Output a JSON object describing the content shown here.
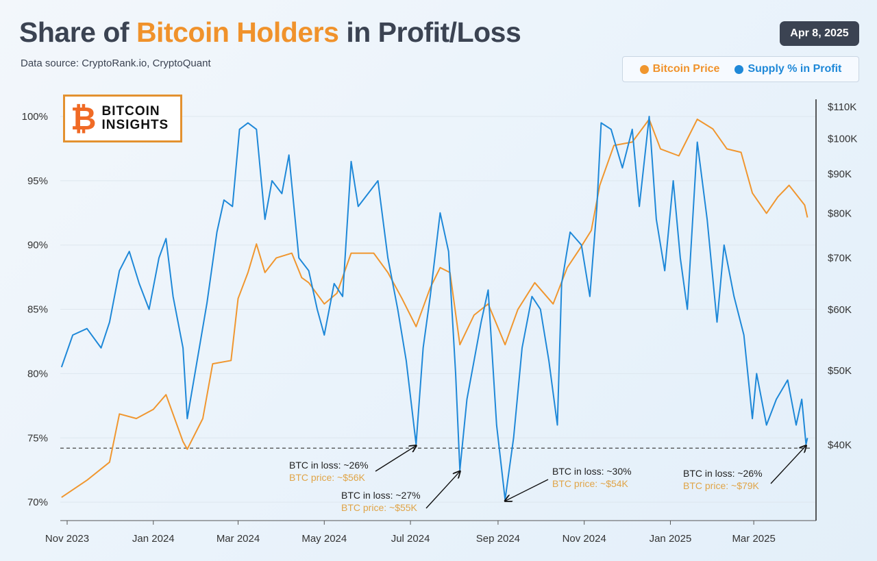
{
  "header": {
    "title_prefix": "Share of ",
    "title_highlight": "Bitcoin Holders",
    "title_suffix": " in Profit/Loss",
    "source": "Data source: CryptoRank.io, CryptoQuant",
    "date_badge": "Apr 8, 2025"
  },
  "logo": {
    "symbol": "₿",
    "line1": "BITCOIN",
    "line2": "INSIGHTS"
  },
  "colors": {
    "title": "#3b4352",
    "accent": "#f0922b",
    "price": "#f0962e",
    "supply": "#1e88d8"
  },
  "chart_data": {
    "type": "line",
    "legend": [
      {
        "name": "Bitcoin Price",
        "color": "#f0962e"
      },
      {
        "name": "Supply % in Profit",
        "color": "#1e88d8"
      }
    ],
    "legend_placement": "top-right",
    "x_ticks": [
      {
        "date": "2023-11-01",
        "label": "Nov 2023"
      },
      {
        "date": "2024-01-01",
        "label": "Jan 2024"
      },
      {
        "date": "2024-03-01",
        "label": "Mar 2024"
      },
      {
        "date": "2024-05-01",
        "label": "May 2024"
      },
      {
        "date": "2024-07-01",
        "label": "Jul 2024"
      },
      {
        "date": "2024-09-01",
        "label": "Sep 2024"
      },
      {
        "date": "2024-11-01",
        "label": "Nov 2024"
      },
      {
        "date": "2025-01-01",
        "label": "Jan 2025"
      },
      {
        "date": "2025-03-01",
        "label": "Mar 2025"
      }
    ],
    "x_range": [
      "2023-10-28",
      "2025-04-08"
    ],
    "y_left": {
      "range": [
        69.5,
        100.5
      ],
      "ticks": [
        {
          "v": 100,
          "label": "100%"
        },
        {
          "v": 95,
          "label": "95%"
        },
        {
          "v": 90,
          "label": "90%"
        },
        {
          "v": 85,
          "label": "85%"
        },
        {
          "v": 80,
          "label": "80%"
        },
        {
          "v": 75,
          "label": "75%"
        },
        {
          "v": 70,
          "label": "70%"
        }
      ],
      "grid": true
    },
    "y_right": {
      "scale": "log",
      "ticks": [
        {
          "v": 110,
          "label": "$110K"
        },
        {
          "v": 100,
          "label": "$100K"
        },
        {
          "v": 90,
          "label": "$90K"
        },
        {
          "v": 80,
          "label": "$80K"
        },
        {
          "v": 70,
          "label": "$70K"
        },
        {
          "v": 60,
          "label": "$60K"
        },
        {
          "v": 50,
          "label": "$50K"
        },
        {
          "v": 40,
          "label": "$40K"
        }
      ]
    },
    "reference_line": {
      "value": 74.2,
      "style": "dashed"
    },
    "series": [
      {
        "name": "Supply % in Profit",
        "axis": "left",
        "unit": "%",
        "points": [
          [
            "2023-10-28",
            80.5
          ],
          [
            "2023-11-05",
            83
          ],
          [
            "2023-11-15",
            83.5
          ],
          [
            "2023-11-25",
            82
          ],
          [
            "2023-12-01",
            84
          ],
          [
            "2023-12-08",
            88
          ],
          [
            "2023-12-15",
            89.5
          ],
          [
            "2023-12-22",
            87
          ],
          [
            "2023-12-29",
            85
          ],
          [
            "2024-01-05",
            89
          ],
          [
            "2024-01-10",
            90.5
          ],
          [
            "2024-01-15",
            86
          ],
          [
            "2024-01-22",
            82
          ],
          [
            "2024-01-25",
            76.5
          ],
          [
            "2024-02-01",
            81
          ],
          [
            "2024-02-08",
            85.5
          ],
          [
            "2024-02-15",
            91
          ],
          [
            "2024-02-20",
            93.5
          ],
          [
            "2024-02-26",
            93
          ],
          [
            "2024-03-02",
            99
          ],
          [
            "2024-03-08",
            99.5
          ],
          [
            "2024-03-14",
            99
          ],
          [
            "2024-03-20",
            92
          ],
          [
            "2024-03-25",
            95
          ],
          [
            "2024-04-01",
            94
          ],
          [
            "2024-04-06",
            97
          ],
          [
            "2024-04-13",
            89
          ],
          [
            "2024-04-20",
            88
          ],
          [
            "2024-04-26",
            85
          ],
          [
            "2024-05-01",
            83
          ],
          [
            "2024-05-08",
            87
          ],
          [
            "2024-05-14",
            86
          ],
          [
            "2024-05-20",
            96.5
          ],
          [
            "2024-05-25",
            93
          ],
          [
            "2024-06-01",
            94
          ],
          [
            "2024-06-08",
            95
          ],
          [
            "2024-06-15",
            89
          ],
          [
            "2024-06-22",
            85
          ],
          [
            "2024-06-28",
            81
          ],
          [
            "2024-07-05",
            74.5
          ],
          [
            "2024-07-10",
            82
          ],
          [
            "2024-07-15",
            86
          ],
          [
            "2024-07-22",
            92.5
          ],
          [
            "2024-07-28",
            89.5
          ],
          [
            "2024-08-02",
            80
          ],
          [
            "2024-08-05",
            72.5
          ],
          [
            "2024-08-10",
            78
          ],
          [
            "2024-08-15",
            81
          ],
          [
            "2024-08-20",
            84
          ],
          [
            "2024-08-25",
            86.5
          ],
          [
            "2024-08-31",
            76
          ],
          [
            "2024-09-06",
            70.2
          ],
          [
            "2024-09-12",
            75
          ],
          [
            "2024-09-18",
            82
          ],
          [
            "2024-09-25",
            86
          ],
          [
            "2024-10-01",
            85
          ],
          [
            "2024-10-07",
            81
          ],
          [
            "2024-10-13",
            76
          ],
          [
            "2024-10-16",
            87
          ],
          [
            "2024-10-22",
            91
          ],
          [
            "2024-10-30",
            90
          ],
          [
            "2024-11-05",
            86
          ],
          [
            "2024-11-10",
            93
          ],
          [
            "2024-11-13",
            99.5
          ],
          [
            "2024-11-20",
            99
          ],
          [
            "2024-11-28",
            96
          ],
          [
            "2024-12-05",
            99
          ],
          [
            "2024-12-10",
            93
          ],
          [
            "2024-12-17",
            100
          ],
          [
            "2024-12-22",
            92
          ],
          [
            "2024-12-28",
            88
          ],
          [
            "2025-01-03",
            95
          ],
          [
            "2025-01-08",
            89
          ],
          [
            "2025-01-13",
            85
          ],
          [
            "2025-01-20",
            98
          ],
          [
            "2025-01-27",
            92
          ],
          [
            "2025-02-03",
            84
          ],
          [
            "2025-02-08",
            90
          ],
          [
            "2025-02-15",
            86
          ],
          [
            "2025-02-22",
            83
          ],
          [
            "2025-02-28",
            76.5
          ],
          [
            "2025-03-03",
            80
          ],
          [
            "2025-03-10",
            76
          ],
          [
            "2025-03-17",
            78
          ],
          [
            "2025-03-25",
            79.5
          ],
          [
            "2025-03-31",
            76
          ],
          [
            "2025-04-04",
            78
          ],
          [
            "2025-04-07",
            74.5
          ],
          [
            "2025-04-08",
            75
          ]
        ]
      },
      {
        "name": "Bitcoin Price",
        "axis": "right",
        "unit": "$K",
        "points": [
          [
            "2023-10-28",
            34.2
          ],
          [
            "2023-11-15",
            36
          ],
          [
            "2023-12-01",
            38
          ],
          [
            "2023-12-08",
            43.9
          ],
          [
            "2023-12-20",
            43.3
          ],
          [
            "2024-01-01",
            44.5
          ],
          [
            "2024-01-10",
            46.5
          ],
          [
            "2024-01-22",
            40.4
          ],
          [
            "2024-01-25",
            39.5
          ],
          [
            "2024-02-05",
            43.3
          ],
          [
            "2024-02-12",
            51
          ],
          [
            "2024-02-25",
            51.5
          ],
          [
            "2024-03-01",
            62
          ],
          [
            "2024-03-08",
            67
          ],
          [
            "2024-03-14",
            73
          ],
          [
            "2024-03-20",
            67
          ],
          [
            "2024-03-28",
            70
          ],
          [
            "2024-04-08",
            71
          ],
          [
            "2024-04-15",
            66
          ],
          [
            "2024-04-20",
            65
          ],
          [
            "2024-05-01",
            61
          ],
          [
            "2024-05-10",
            63
          ],
          [
            "2024-05-20",
            71
          ],
          [
            "2024-06-05",
            71
          ],
          [
            "2024-06-15",
            67
          ],
          [
            "2024-06-25",
            62
          ],
          [
            "2024-07-05",
            57
          ],
          [
            "2024-07-15",
            64
          ],
          [
            "2024-07-22",
            68
          ],
          [
            "2024-07-29",
            67
          ],
          [
            "2024-08-05",
            54
          ],
          [
            "2024-08-15",
            59
          ],
          [
            "2024-08-25",
            61
          ],
          [
            "2024-09-06",
            54
          ],
          [
            "2024-09-15",
            60
          ],
          [
            "2024-09-27",
            65
          ],
          [
            "2024-10-10",
            61
          ],
          [
            "2024-10-20",
            68
          ],
          [
            "2024-10-29",
            72
          ],
          [
            "2024-11-06",
            76
          ],
          [
            "2024-11-12",
            87
          ],
          [
            "2024-11-22",
            98
          ],
          [
            "2024-12-05",
            99
          ],
          [
            "2024-12-17",
            106
          ],
          [
            "2024-12-25",
            97
          ],
          [
            "2025-01-07",
            95
          ],
          [
            "2025-01-20",
            106
          ],
          [
            "2025-01-31",
            103
          ],
          [
            "2025-02-10",
            97
          ],
          [
            "2025-02-20",
            96
          ],
          [
            "2025-02-28",
            85
          ],
          [
            "2025-03-10",
            80
          ],
          [
            "2025-03-18",
            84
          ],
          [
            "2025-03-26",
            87
          ],
          [
            "2025-04-06",
            82
          ],
          [
            "2025-04-08",
            79
          ]
        ]
      }
    ],
    "annotations": [
      {
        "loss": "BTC in loss: ~26%",
        "price": "BTC price: ~$56K",
        "date": "2024-07-05"
      },
      {
        "loss": "BTC in loss: ~27%",
        "price": "BTC price: ~$55K",
        "date": "2024-08-05"
      },
      {
        "loss": "BTC in loss: ~30%",
        "price": "BTC price: ~$54K",
        "date": "2024-09-06"
      },
      {
        "loss": "BTC in loss: ~26%",
        "price": "BTC price: ~$79K",
        "date": "2025-04-07"
      }
    ]
  }
}
